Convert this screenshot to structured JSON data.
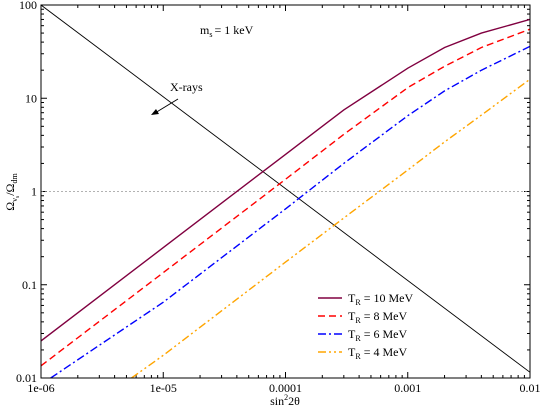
{
  "chart_data": {
    "type": "line",
    "x_scale": "log",
    "y_scale": "log",
    "xlim": [
      1e-06,
      0.01
    ],
    "ylim": [
      0.01,
      100
    ],
    "xlabel": {
      "prefix": "sin",
      "sup": "2",
      "suffix": "2θ"
    },
    "ylabel": {
      "omega": "Ω",
      "sub1": "ν",
      "sub1b": "s",
      "slash": "/",
      "omega2": "Ω",
      "sub2": "dm"
    },
    "x_ticks": [
      {
        "value": 1e-06,
        "label": "1e-06"
      },
      {
        "value": 1e-05,
        "label": "1e-05"
      },
      {
        "value": 0.0001,
        "label": "0.0001"
      },
      {
        "value": 0.001,
        "label": "0.001"
      },
      {
        "value": 0.01,
        "label": "0.01"
      }
    ],
    "y_ticks": [
      {
        "value": 0.01,
        "label": "0.01"
      },
      {
        "value": 0.1,
        "label": "0.1"
      },
      {
        "value": 1,
        "label": "1"
      },
      {
        "value": 10,
        "label": "10"
      },
      {
        "value": 100,
        "label": "100"
      }
    ],
    "reference_line": {
      "y": 1,
      "style": "dotted",
      "color": "#999999"
    },
    "annotations": [
      {
        "text_main": "m",
        "text_sub": "s",
        "text_rest": "= 1 keV"
      },
      {
        "text": "X-rays",
        "arrow": true
      }
    ],
    "xray_line": {
      "color": "#000000",
      "x": [
        1e-06,
        0.01
      ],
      "y": [
        100,
        0.0115
      ]
    },
    "series": [
      {
        "name": {
          "main": "T",
          "sub": "R",
          "rest": " = 10 MeV"
        },
        "color": "#800040",
        "dash": "solid",
        "x": [
          1e-06,
          1e-05,
          0.0001,
          0.0003,
          0.001,
          0.002,
          0.004,
          0.01
        ],
        "y": [
          0.025,
          0.25,
          2.5,
          7.5,
          21,
          35,
          50,
          70
        ]
      },
      {
        "name": {
          "main": "T",
          "sub": "R",
          "rest": " = 8 MeV"
        },
        "color": "#ff0000",
        "dash": "dashed",
        "x": [
          1e-06,
          1e-05,
          0.0001,
          0.0003,
          0.001,
          0.002,
          0.004,
          0.01
        ],
        "y": [
          0.0135,
          0.135,
          1.35,
          4.1,
          13,
          22,
          35,
          55
        ]
      },
      {
        "name": {
          "main": "T",
          "sub": "R",
          "rest": " = 6 MeV"
        },
        "color": "#0000ff",
        "dash": "dashdot",
        "x": [
          1.2e-06,
          1e-05,
          0.0001,
          0.0003,
          0.001,
          0.002,
          0.004,
          0.01
        ],
        "y": [
          0.01,
          0.065,
          0.65,
          2,
          6.5,
          12,
          20,
          36
        ]
      },
      {
        "name": {
          "main": "T",
          "sub": "R",
          "rest": " = 4 MeV"
        },
        "color": "#ffa500",
        "dash": "dashdotdot",
        "x": [
          5.5e-06,
          1e-05,
          0.0001,
          0.0003,
          0.001,
          0.002,
          0.004,
          0.01
        ],
        "y": [
          0.01,
          0.0175,
          0.175,
          0.52,
          1.7,
          3.4,
          6.6,
          16
        ]
      }
    ]
  }
}
